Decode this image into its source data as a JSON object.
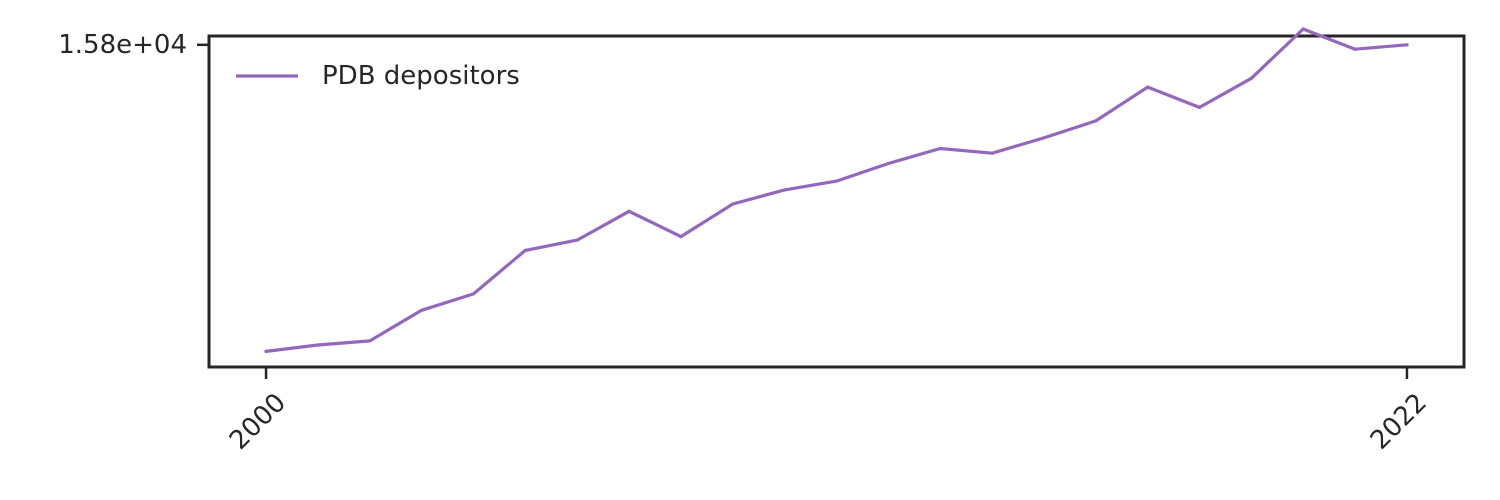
{
  "chart_data": {
    "type": "line",
    "title": "",
    "xlabel": "",
    "ylabel": "",
    "x_ticks": [
      "2000",
      "2022"
    ],
    "y_ticks": [
      {
        "value": 15800,
        "label": "1.58e+04"
      }
    ],
    "xlim": [
      1998.9,
      2023.1
    ],
    "ylim": [
      4830,
      16100
    ],
    "grid": false,
    "legend": {
      "position": "top-left"
    },
    "series": [
      {
        "name": "PDB depositors",
        "color": "#9467bd",
        "x": [
          2000,
          2001,
          2002,
          2003,
          2004,
          2005,
          2006,
          2007,
          2008,
          2009,
          2010,
          2011,
          2012,
          2013,
          2014,
          2015,
          2016,
          2017,
          2018,
          2019,
          2020,
          2021,
          2022
        ],
        "y": [
          5360,
          5580,
          5720,
          6760,
          7320,
          8800,
          9150,
          10130,
          9270,
          10380,
          10860,
          11160,
          11760,
          12270,
          12110,
          12630,
          13210,
          14360,
          13670,
          14660,
          16340,
          15650,
          15800
        ]
      }
    ]
  }
}
